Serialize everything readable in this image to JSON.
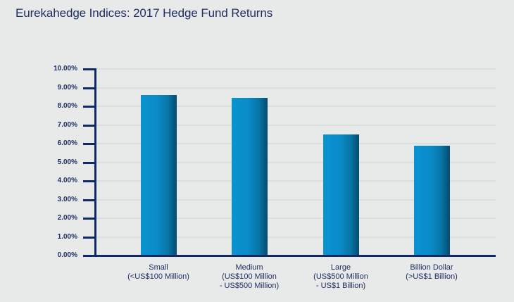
{
  "title": "Eurekahedge Indices: 2017 Hedge Fund Returns",
  "chart_data": {
    "type": "bar",
    "title": "Eurekahedge Indices: 2017 Hedge Fund Returns",
    "xlabel": "",
    "ylabel": "",
    "ylim": [
      0,
      10
    ],
    "yticks": [
      "0.00%",
      "1.00%",
      "2.00%",
      "3.00%",
      "4.00%",
      "5.00%",
      "6.00%",
      "7.00%",
      "8.00%",
      "9.00%",
      "10.00%"
    ],
    "grid": true,
    "legend": null,
    "categories": [
      "Small (<US$100 Million)",
      "Medium (US$100 Million - US$500 Million)",
      "Large (US$500 Million - US$1 Billion)",
      "Billion Dollar (>US$1 Billion)"
    ],
    "category_lines": [
      [
        "Small",
        "(<US$100 Million)"
      ],
      [
        "Medium",
        "(US$100 Million",
        "- US$500 Million)"
      ],
      [
        "Large",
        "(US$500 Million",
        "- US$1 Billion)"
      ],
      [
        "Billion Dollar",
        "(>US$1 Billion)"
      ]
    ],
    "values": [
      8.6,
      8.45,
      6.5,
      5.9
    ],
    "unit": "%",
    "colors": {
      "bar": "#0a93d1",
      "bar_shade": "#064a6e",
      "axis": "#0f2a66",
      "grid": "#dcdddd",
      "text": "#1e2f63",
      "background": "#e8e9e9"
    }
  }
}
